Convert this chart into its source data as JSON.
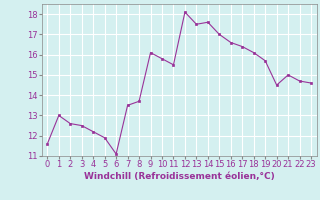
{
  "x": [
    0,
    1,
    2,
    3,
    4,
    5,
    6,
    7,
    8,
    9,
    10,
    11,
    12,
    13,
    14,
    15,
    16,
    17,
    18,
    19,
    20,
    21,
    22,
    23
  ],
  "y": [
    11.6,
    13.0,
    12.6,
    12.5,
    12.2,
    11.9,
    11.1,
    13.5,
    13.7,
    16.1,
    15.8,
    15.5,
    18.1,
    17.5,
    17.6,
    17.0,
    16.6,
    16.4,
    16.1,
    15.7,
    14.5,
    15.0,
    14.7,
    14.6
  ],
  "ylim": [
    11,
    18.5
  ],
  "yticks": [
    11,
    12,
    13,
    14,
    15,
    16,
    17,
    18
  ],
  "xlabel": "Windchill (Refroidissement éolien,°C)",
  "line_color": "#993399",
  "marker_color": "#993399",
  "bg_color": "#d4f0f0",
  "grid_color": "#b0d8d8",
  "tick_label_color": "#993399",
  "axis_label_color": "#993399",
  "label_fontsize": 6.5,
  "tick_fontsize": 6.0
}
